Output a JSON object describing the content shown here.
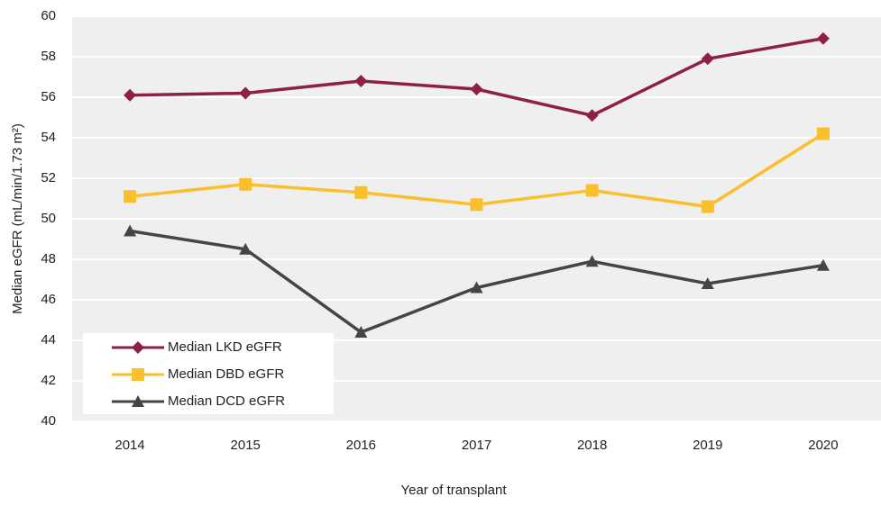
{
  "chart_data": {
    "type": "line",
    "xlabel": "Year of transplant",
    "ylabel": "Median eGFR (mL/min/1.73 m²)",
    "categories": [
      "2014",
      "2015",
      "2016",
      "2017",
      "2018",
      "2019",
      "2020"
    ],
    "series": [
      {
        "name": "Median LKD eGFR",
        "color": "#8e2043",
        "marker": "diamond",
        "values": [
          56.1,
          56.2,
          56.8,
          56.4,
          55.1,
          57.9,
          58.9
        ]
      },
      {
        "name": "Median DBD eGFR",
        "color": "#fbbf2e",
        "marker": "square",
        "values": [
          51.1,
          51.7,
          51.3,
          50.7,
          51.4,
          50.6,
          54.2
        ]
      },
      {
        "name": "Median DCD eGFR",
        "color": "#454545",
        "marker": "triangle",
        "values": [
          49.4,
          48.5,
          44.4,
          46.6,
          47.9,
          46.8,
          47.7
        ]
      }
    ],
    "ylim": [
      40,
      60
    ],
    "yticks": [
      40,
      42,
      44,
      46,
      48,
      50,
      52,
      54,
      56,
      58,
      60
    ],
    "grid": true,
    "legend": "lower left"
  }
}
